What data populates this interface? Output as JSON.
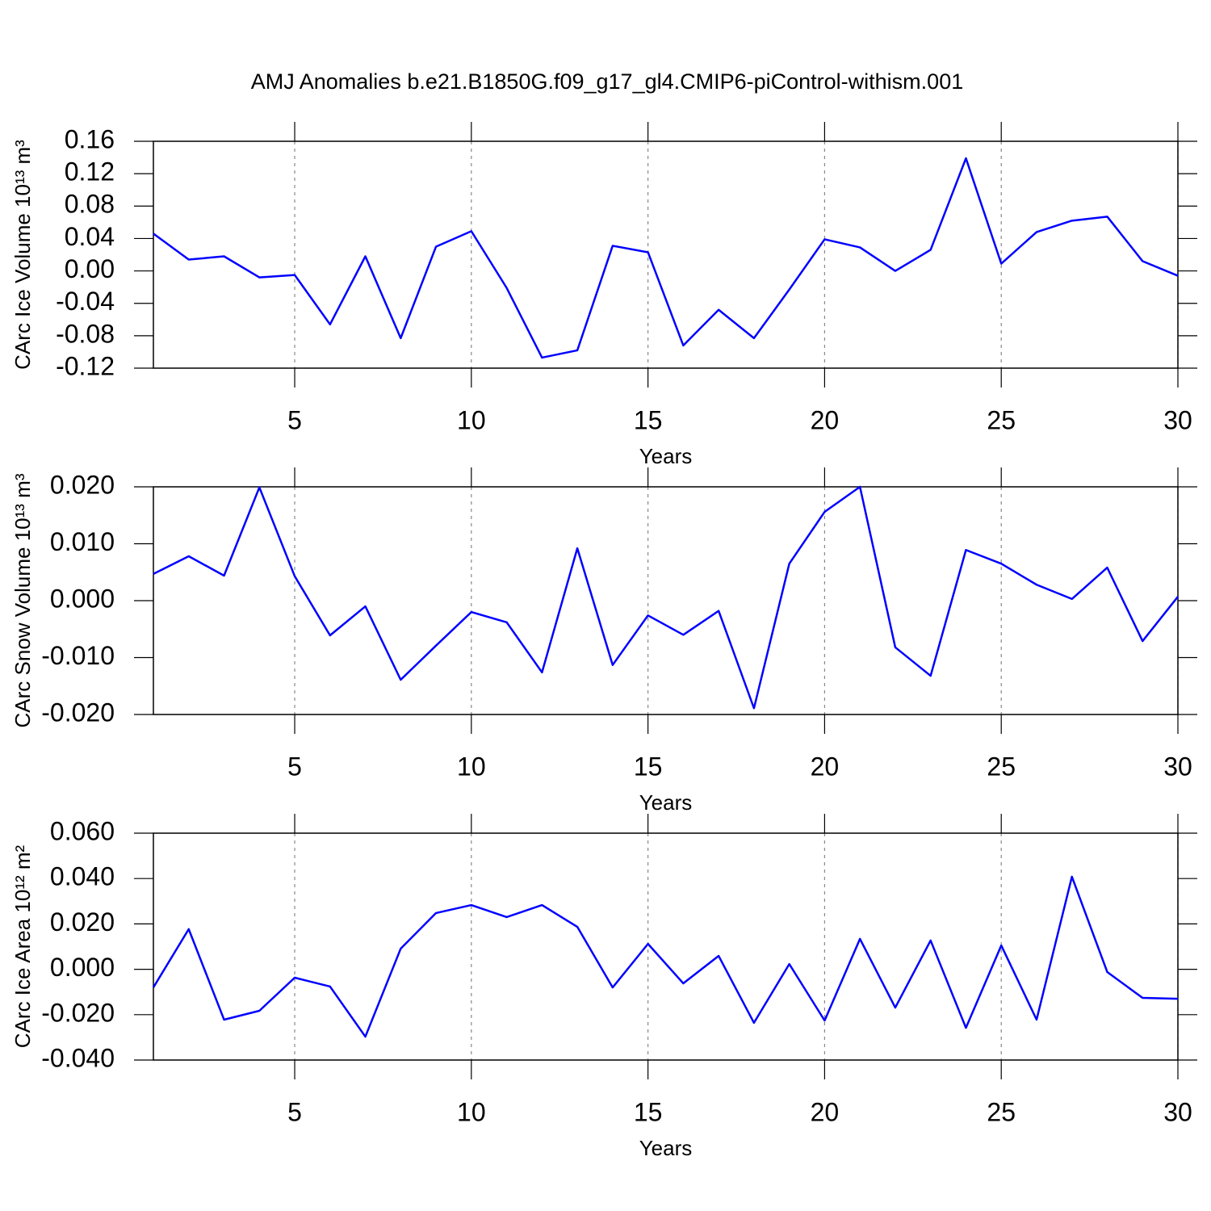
{
  "chart_data": [
    {
      "type": "line",
      "title": "AMJ Anomalies b.e21.B1850G.f09_g17_gl4.CMIP6-piControl-withism.001",
      "x_label": "Years",
      "y_label": "CArc Ice Volume 10¹³ m³",
      "color": "#0000ff",
      "grid": true,
      "x": [
        1,
        2,
        3,
        4,
        5,
        6,
        7,
        8,
        9,
        10,
        11,
        12,
        13,
        14,
        15,
        16,
        17,
        18,
        19,
        20,
        21,
        22,
        23,
        24,
        25,
        26,
        27,
        28,
        29,
        30
      ],
      "values": [
        0.046,
        0.014,
        0.018,
        -0.008,
        -0.005,
        -0.066,
        0.018,
        -0.083,
        0.03,
        0.049,
        -0.021,
        -0.107,
        -0.098,
        0.031,
        0.023,
        -0.092,
        -0.048,
        -0.083,
        -0.023,
        0.039,
        0.029,
        0.0,
        0.026,
        0.139,
        0.009,
        0.048,
        0.062,
        0.067,
        0.012,
        -0.006
      ],
      "xlim": [
        1,
        30
      ],
      "xticks": [
        5,
        10,
        15,
        20,
        25,
        30
      ],
      "ylim": [
        -0.12,
        0.16
      ],
      "yticks": [
        -0.12,
        -0.08,
        -0.04,
        {
          "value": 0,
          "label": "0.00"
        },
        0.04,
        0.08,
        0.12,
        0.16
      ]
    },
    {
      "type": "line",
      "x_label": "Years",
      "y_label": "CArc Snow Volume 10¹³ m³",
      "color": "#0000ff",
      "grid": true,
      "x": [
        1,
        2,
        3,
        4,
        5,
        6,
        7,
        8,
        9,
        10,
        11,
        12,
        13,
        14,
        15,
        16,
        17,
        18,
        19,
        20,
        21,
        22,
        23,
        24,
        25,
        26,
        27,
        28,
        29,
        30
      ],
      "values": [
        0.0047,
        0.0078,
        0.0044,
        0.0199,
        0.0043,
        -0.0061,
        -0.001,
        -0.0139,
        -0.0079,
        -0.002,
        -0.0038,
        -0.0126,
        0.0092,
        -0.0113,
        -0.0026,
        -0.006,
        -0.0018,
        -0.0189,
        0.0065,
        0.0156,
        0.02,
        -0.0082,
        -0.0132,
        0.0089,
        0.0065,
        0.0028,
        0.0003,
        0.0058,
        -0.0071,
        0.0007
      ],
      "xlim": [
        1,
        30
      ],
      "xticks": [
        5,
        10,
        15,
        20,
        25,
        30
      ],
      "ylim": [
        -0.02,
        0.02
      ],
      "yticks": [
        {
          "value": -0.02,
          "label": "-0.020"
        },
        {
          "value": -0.01,
          "label": "-0.010"
        },
        {
          "value": 0,
          "label": "0.000"
        },
        {
          "value": 0.01,
          "label": "0.010"
        },
        {
          "value": 0.02,
          "label": "0.020"
        }
      ]
    },
    {
      "type": "line",
      "x_label": "Years",
      "y_label": "CArc Ice Area 10¹² m²",
      "color": "#0000ff",
      "grid": true,
      "x": [
        1,
        2,
        3,
        4,
        5,
        6,
        7,
        8,
        9,
        10,
        11,
        12,
        13,
        14,
        15,
        16,
        17,
        18,
        19,
        20,
        21,
        22,
        23,
        24,
        25,
        26,
        27,
        28,
        29,
        30
      ],
      "values": [
        -0.008,
        0.0177,
        -0.0222,
        -0.0183,
        -0.0037,
        -0.0076,
        -0.0297,
        0.0091,
        0.0248,
        0.0283,
        0.023,
        0.0283,
        0.0187,
        -0.008,
        0.0112,
        -0.0062,
        0.0059,
        -0.0236,
        0.0023,
        -0.0226,
        0.0134,
        -0.0169,
        0.0127,
        -0.0258,
        0.0105,
        -0.0222,
        0.0408,
        -0.0012,
        -0.0126,
        -0.013
      ],
      "xlim": [
        1,
        30
      ],
      "xticks": [
        5,
        10,
        15,
        20,
        25,
        30
      ],
      "ylim": [
        -0.04,
        0.06
      ],
      "yticks": [
        {
          "value": -0.04,
          "label": "-0.040"
        },
        {
          "value": -0.02,
          "label": "-0.020"
        },
        {
          "value": 0,
          "label": "0.000"
        },
        {
          "value": 0.02,
          "label": "0.020"
        },
        {
          "value": 0.04,
          "label": "0.040"
        },
        {
          "value": 0.06,
          "label": "0.060"
        }
      ]
    }
  ]
}
